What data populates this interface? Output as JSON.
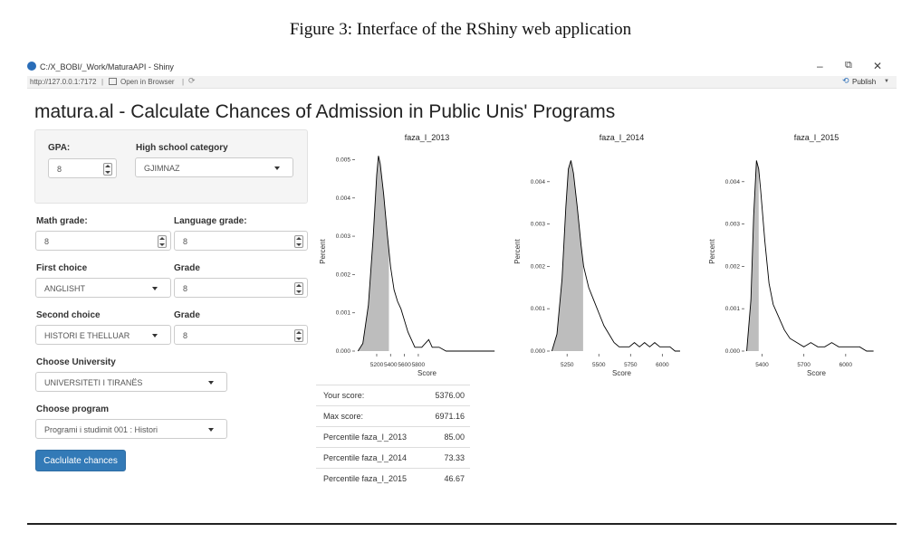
{
  "figure_caption": "Figure 3: Interface of the RShiny web application",
  "window": {
    "title": "C:/X_BOBI/_Work/MaturaAPI - Shiny",
    "address": "http://127.0.0.1:7172",
    "open_in_browser": "Open in Browser",
    "publish": "Publish",
    "minimize": "–",
    "restore": "⧉",
    "close": "✕"
  },
  "app": {
    "title": "matura.al - Calculate Chances of Admission in Public Unis' Programs",
    "gpa_label": "GPA:",
    "gpa_value": "8",
    "hs_category_label": "High school category",
    "hs_category_value": "GJIMNAZ",
    "math_label": "Math grade:",
    "math_value": "8",
    "language_label": "Language grade:",
    "language_value": "8",
    "first_choice_label": "First choice",
    "first_choice_value": "ANGLISHT",
    "first_grade_label": "Grade",
    "first_grade_value": "8",
    "second_choice_label": "Second choice",
    "second_choice_value": "HISTORI E THELLUAR",
    "second_grade_label": "Grade",
    "second_grade_value": "8",
    "university_label": "Choose University",
    "university_value": "UNIVERSITETI I TIRANËS",
    "program_label": "Choose program",
    "program_value": "Programi i studimit 001 : Histori",
    "button_label": "Caclulate chances"
  },
  "results": [
    {
      "label": "Your score:",
      "value": "5376.00"
    },
    {
      "label": "Max score:",
      "value": "6971.16"
    },
    {
      "label": "Percentile faza_I_2013",
      "value": "85.00"
    },
    {
      "label": "Percentile faza_I_2014",
      "value": "73.33"
    },
    {
      "label": "Percentile faza_I_2015",
      "value": "46.67"
    }
  ],
  "chart_data": [
    {
      "type": "area",
      "title": "faza_I_2013",
      "xlabel": "Score",
      "ylabel": "Percent",
      "xlim": [
        4900,
        6950
      ],
      "ylim": [
        0,
        0.0052
      ],
      "xticks": [
        "5200",
        "5400",
        "5600",
        "5800"
      ],
      "yticks": [
        "0.000",
        "0.001",
        "0.002",
        "0.003",
        "0.004",
        "0.005"
      ],
      "shaded_below_score": 5376,
      "x": [
        4930,
        5000,
        5080,
        5150,
        5200,
        5225,
        5250,
        5300,
        5350,
        5400,
        5450,
        5500,
        5550,
        5600,
        5650,
        5700,
        5750,
        5800,
        5850,
        5900,
        5950,
        6000,
        6100,
        6200,
        6300,
        6400,
        6500,
        6600,
        6700,
        6800,
        6900
      ],
      "y": [
        0,
        0.0002,
        0.0012,
        0.003,
        0.0046,
        0.0051,
        0.0049,
        0.0041,
        0.0031,
        0.0022,
        0.0016,
        0.0013,
        0.0011,
        0.0008,
        0.0005,
        0.0003,
        0.0001,
        0.0001,
        0.0001,
        0.0002,
        0.0003,
        0.0001,
        0.0001,
        0.0,
        0.0,
        0.0,
        0.0,
        0.0,
        0.0,
        0.0,
        0.0
      ]
    },
    {
      "type": "area",
      "title": "faza_I_2014",
      "xlabel": "Score",
      "ylabel": "Percent",
      "xlim": [
        5120,
        6240
      ],
      "ylim": [
        0,
        0.0047
      ],
      "xticks": [
        "5250",
        "5500",
        "5750",
        "6000"
      ],
      "yticks": [
        "0.000",
        "0.001",
        "0.002",
        "0.003",
        "0.004"
      ],
      "shaded_below_score": 5376,
      "x": [
        5130,
        5170,
        5210,
        5240,
        5260,
        5280,
        5300,
        5330,
        5360,
        5380,
        5420,
        5460,
        5500,
        5540,
        5580,
        5620,
        5660,
        5700,
        5740,
        5780,
        5820,
        5860,
        5900,
        5940,
        5980,
        6020,
        6060,
        6100,
        6140
      ],
      "y": [
        0,
        0.0004,
        0.0017,
        0.0034,
        0.0043,
        0.0045,
        0.0042,
        0.0034,
        0.0025,
        0.002,
        0.0015,
        0.0012,
        0.0009,
        0.0006,
        0.0004,
        0.0002,
        0.0001,
        0.0001,
        0.0001,
        0.0002,
        0.0001,
        0.0002,
        0.0001,
        0.0002,
        0.0001,
        0.0001,
        0.0001,
        0.0,
        0.0
      ]
    },
    {
      "type": "area",
      "title": "faza_I_2015",
      "xlabel": "Score",
      "ylabel": "Percent",
      "xlim": [
        5280,
        6300
      ],
      "ylim": [
        0,
        0.0047
      ],
      "xticks": [
        "5400",
        "5700",
        "6000"
      ],
      "yticks": [
        "0.000",
        "0.001",
        "0.002",
        "0.003",
        "0.004"
      ],
      "shaded_below_score": 5376,
      "x": [
        5290,
        5320,
        5340,
        5360,
        5376,
        5390,
        5420,
        5450,
        5480,
        5520,
        5560,
        5600,
        5650,
        5700,
        5750,
        5800,
        5850,
        5900,
        5950,
        6000,
        6050,
        6100,
        6150,
        6200
      ],
      "y": [
        0,
        0.0012,
        0.0032,
        0.0045,
        0.0043,
        0.0038,
        0.0026,
        0.0016,
        0.0011,
        0.0008,
        0.0005,
        0.0003,
        0.0002,
        0.0001,
        0.0002,
        0.0001,
        0.0001,
        0.0002,
        0.0001,
        0.0001,
        0.0001,
        0.0001,
        0.0,
        0.0
      ]
    }
  ]
}
